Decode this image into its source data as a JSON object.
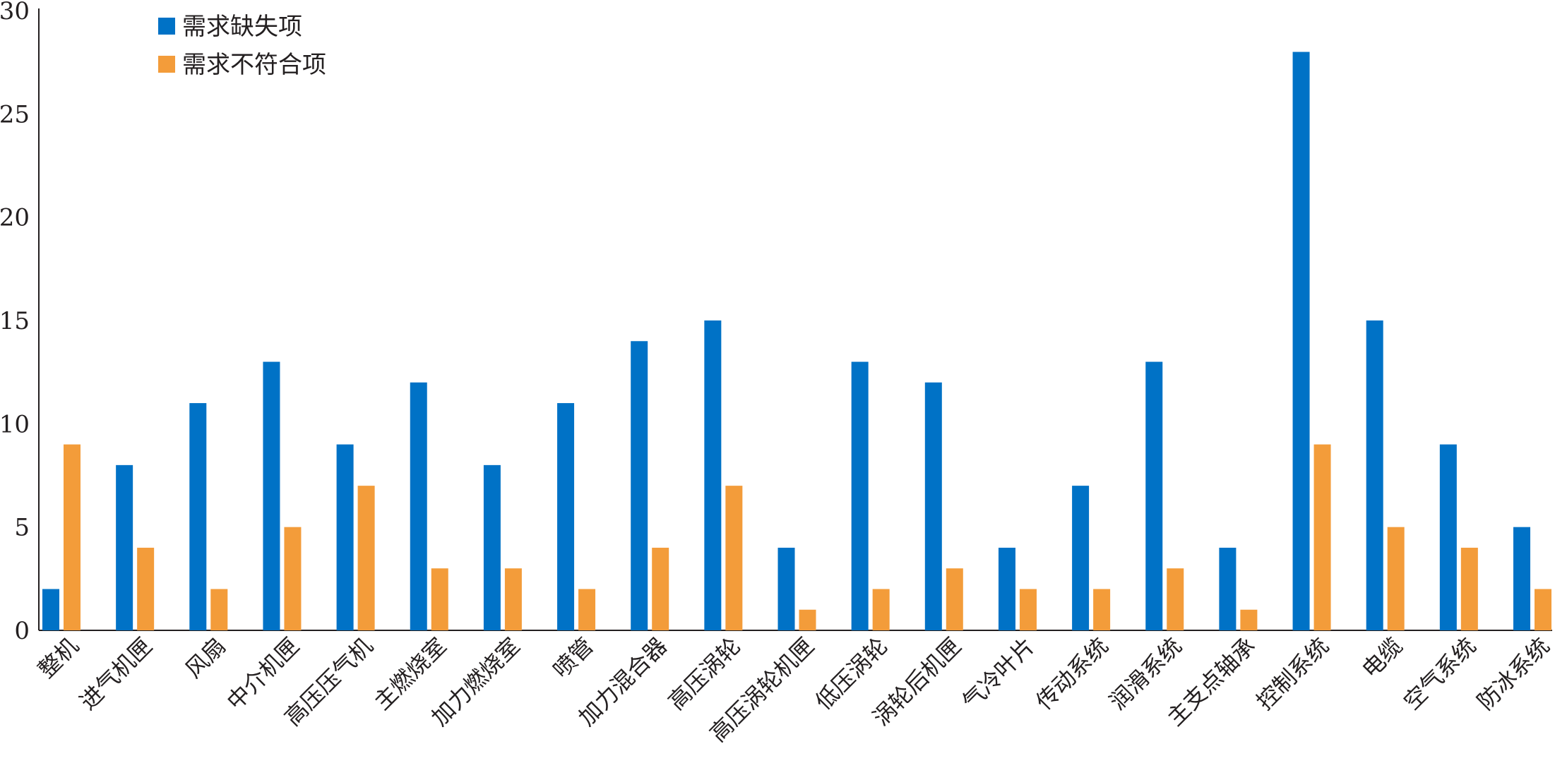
{
  "chart_data": {
    "type": "bar",
    "categories": [
      "整机",
      "进气机匣",
      "风扇",
      "中介机匣",
      "高压压气机",
      "主燃烧室",
      "加力燃烧室",
      "喷管",
      "加力混合器",
      "高压涡轮",
      "高压涡轮机匣",
      "低压涡轮",
      "涡轮后机匣",
      "气冷叶片",
      "传动系统",
      "润滑系统",
      "主支点轴承",
      "控制系统",
      "电缆",
      "空气系统",
      "防冰系统"
    ],
    "series": [
      {
        "name": "需求缺失项",
        "color": "#0072c6",
        "values": [
          2,
          8,
          11,
          13,
          9,
          12,
          8,
          11,
          14,
          15,
          4,
          13,
          12,
          4,
          7,
          13,
          4,
          28,
          15,
          9,
          5
        ]
      },
      {
        "name": "需求不符合项",
        "color": "#f39c3a",
        "values": [
          9,
          4,
          2,
          5,
          7,
          3,
          3,
          2,
          4,
          7,
          1,
          2,
          3,
          2,
          2,
          3,
          1,
          9,
          5,
          4,
          2
        ]
      }
    ],
    "ylim": [
      0,
      30
    ],
    "yticks": [
      0,
      5,
      10,
      15,
      20,
      25,
      30
    ],
    "grid": false,
    "legend_position": "top-left",
    "xlabel": "",
    "ylabel": "",
    "title": ""
  }
}
